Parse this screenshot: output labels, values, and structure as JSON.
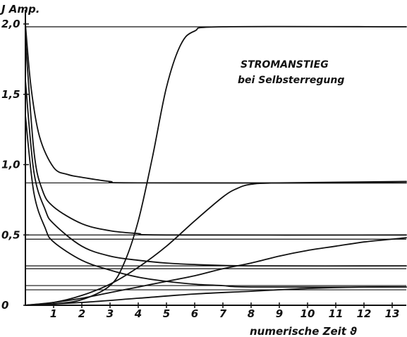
{
  "chart_data": {
    "type": "line",
    "title": "STROMANSTIEG",
    "subtitle": "bei Selbsterregung",
    "ylabel": "J Amp.",
    "xlabel": "numerische Zeit ϑ",
    "xlim": [
      0,
      13.5
    ],
    "ylim": [
      0,
      2.0
    ],
    "x_ticks": [
      "1",
      "2",
      "3",
      "4",
      "5",
      "6",
      "7",
      "8",
      "9",
      "10",
      "11",
      "12",
      "13"
    ],
    "y_ticks": [
      "0",
      "0,5",
      "1,0",
      "1,5",
      "2,0"
    ],
    "y_tick_values": [
      0,
      0.5,
      1.0,
      1.5,
      2.0
    ],
    "reference_levels": [
      1.98,
      0.87,
      0.5,
      0.47,
      0.28,
      0.26,
      0.14,
      0.11
    ],
    "series": [
      {
        "values": [
          [
            0,
            0
          ],
          [
            1,
            0.01
          ],
          [
            2,
            0.04
          ],
          [
            3,
            0.14
          ],
          [
            3.5,
            0.3
          ],
          [
            4,
            0.6
          ],
          [
            4.5,
            1.05
          ],
          [
            5,
            1.55
          ],
          [
            5.5,
            1.85
          ],
          [
            6,
            1.95
          ],
          [
            7,
            1.98
          ],
          [
            13.5,
            1.98
          ]
        ]
      },
      {
        "values": [
          [
            0,
            0
          ],
          [
            1,
            0.02
          ],
          [
            2,
            0.07
          ],
          [
            3,
            0.15
          ],
          [
            4,
            0.27
          ],
          [
            5,
            0.42
          ],
          [
            6,
            0.6
          ],
          [
            7,
            0.77
          ],
          [
            7.5,
            0.83
          ],
          [
            8,
            0.86
          ],
          [
            9,
            0.87
          ],
          [
            13.5,
            0.88
          ]
        ]
      },
      {
        "values": [
          [
            0,
            0
          ],
          [
            1,
            0.02
          ],
          [
            2,
            0.05
          ],
          [
            3,
            0.09
          ],
          [
            4,
            0.13
          ],
          [
            5,
            0.17
          ],
          [
            6,
            0.21
          ],
          [
            7,
            0.26
          ],
          [
            8,
            0.3
          ],
          [
            9,
            0.35
          ],
          [
            10,
            0.39
          ],
          [
            11,
            0.42
          ],
          [
            12,
            0.45
          ],
          [
            13,
            0.47
          ],
          [
            13.5,
            0.48
          ]
        ]
      },
      {
        "values": [
          [
            0,
            0
          ],
          [
            2,
            0.02
          ],
          [
            4,
            0.05
          ],
          [
            6,
            0.08
          ],
          [
            8,
            0.1
          ],
          [
            10,
            0.12
          ],
          [
            12,
            0.13
          ],
          [
            13.5,
            0.13
          ]
        ]
      },
      {
        "values": [
          [
            0,
            2.0
          ],
          [
            0.2,
            1.55
          ],
          [
            0.5,
            1.2
          ],
          [
            1,
            0.98
          ],
          [
            1.5,
            0.93
          ],
          [
            2,
            0.91
          ],
          [
            3,
            0.88
          ],
          [
            4,
            0.87
          ],
          [
            13.5,
            0.87
          ]
        ]
      },
      {
        "values": [
          [
            0,
            1.9
          ],
          [
            0.3,
            1.1
          ],
          [
            0.6,
            0.82
          ],
          [
            1,
            0.7
          ],
          [
            2,
            0.58
          ],
          [
            3,
            0.53
          ],
          [
            4,
            0.51
          ],
          [
            5,
            0.5
          ],
          [
            13.5,
            0.5
          ]
        ]
      },
      {
        "values": [
          [
            0,
            1.6
          ],
          [
            0.3,
            0.95
          ],
          [
            0.7,
            0.68
          ],
          [
            1,
            0.58
          ],
          [
            2,
            0.42
          ],
          [
            3,
            0.35
          ],
          [
            4,
            0.32
          ],
          [
            5,
            0.3
          ],
          [
            6,
            0.29
          ],
          [
            8,
            0.28
          ],
          [
            13.5,
            0.28
          ]
        ]
      },
      {
        "values": [
          [
            0,
            1.35
          ],
          [
            0.3,
            0.8
          ],
          [
            0.7,
            0.55
          ],
          [
            1,
            0.45
          ],
          [
            2,
            0.32
          ],
          [
            3,
            0.25
          ],
          [
            4,
            0.2
          ],
          [
            5,
            0.17
          ],
          [
            6,
            0.15
          ],
          [
            7,
            0.14
          ],
          [
            8,
            0.13
          ],
          [
            13.5,
            0.13
          ]
        ]
      }
    ]
  }
}
